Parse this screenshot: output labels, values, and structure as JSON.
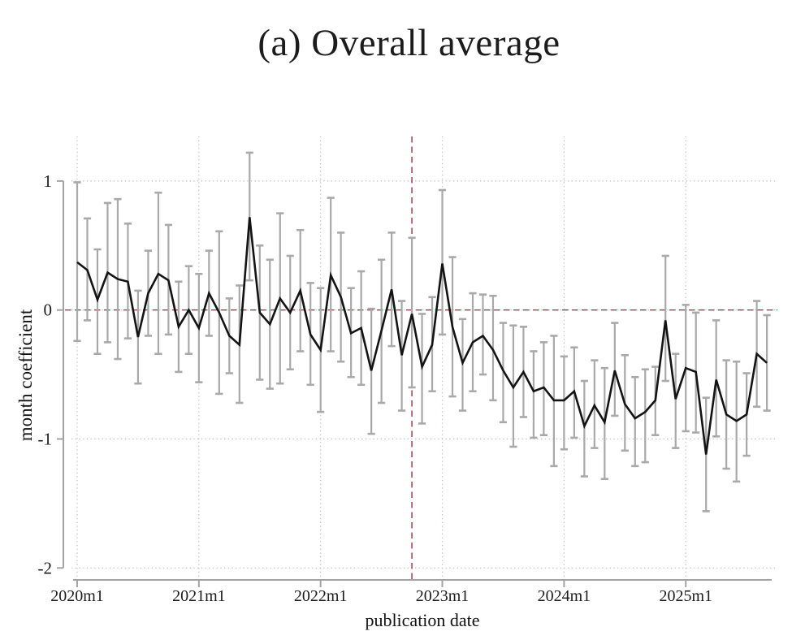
{
  "title": "(a) Overall average",
  "chart_data": {
    "type": "line",
    "title": "(a) Overall average",
    "xlabel": "publication date",
    "ylabel": "month coefficient",
    "x_tick_labels": [
      "2020m1",
      "2021m1",
      "2022m1",
      "2023m1",
      "2024m1",
      "2025m1"
    ],
    "y_ticks": [
      1,
      0,
      -1,
      -2
    ],
    "ylim": [
      -2.1,
      1.35
    ],
    "grid": "dotted",
    "legend": "none",
    "months": [
      "2020m1",
      "2020m2",
      "2020m3",
      "2020m4",
      "2020m5",
      "2020m6",
      "2020m7",
      "2020m8",
      "2020m9",
      "2020m10",
      "2020m11",
      "2020m12",
      "2021m1",
      "2021m2",
      "2021m3",
      "2021m4",
      "2021m5",
      "2021m6",
      "2021m7",
      "2021m8",
      "2021m9",
      "2021m10",
      "2021m11",
      "2021m12",
      "2022m1",
      "2022m2",
      "2022m3",
      "2022m4",
      "2022m5",
      "2022m6",
      "2022m7",
      "2022m8",
      "2022m9",
      "2022m10",
      "2022m11",
      "2022m12",
      "2023m1",
      "2023m2",
      "2023m3",
      "2023m4",
      "2023m5",
      "2023m6",
      "2023m7",
      "2023m8",
      "2023m9",
      "2023m10",
      "2023m11",
      "2023m12",
      "2024m1",
      "2024m2",
      "2024m3",
      "2024m4",
      "2024m5",
      "2024m6",
      "2024m7",
      "2024m8",
      "2024m9",
      "2024m10",
      "2024m11",
      "2024m12",
      "2025m1",
      "2025m2",
      "2025m3",
      "2025m4",
      "2025m5",
      "2025m6",
      "2025m7",
      "2025m8",
      "2025m9"
    ],
    "series": [
      {
        "name": "coefficient",
        "values": [
          0.37,
          0.31,
          0.08,
          0.29,
          0.24,
          0.22,
          -0.21,
          0.13,
          0.28,
          0.23,
          -0.13,
          0.0,
          -0.14,
          0.13,
          -0.02,
          -0.2,
          -0.27,
          0.72,
          -0.02,
          -0.11,
          0.09,
          -0.02,
          0.15,
          -0.19,
          -0.31,
          0.27,
          0.1,
          -0.18,
          -0.14,
          -0.47,
          -0.16,
          0.16,
          -0.35,
          -0.03,
          -0.44,
          -0.27,
          0.36,
          -0.13,
          -0.41,
          -0.25,
          -0.2,
          -0.31,
          -0.47,
          -0.6,
          -0.48,
          -0.63,
          -0.6,
          -0.7,
          -0.7,
          -0.63,
          -0.9,
          -0.74,
          -0.87,
          -0.47,
          -0.73,
          -0.84,
          -0.79,
          -0.7,
          -0.08,
          -0.69,
          -0.45,
          -0.48,
          -1.12,
          -0.54,
          -0.81,
          -0.86,
          -0.81,
          -0.34,
          -0.41
        ]
      },
      {
        "name": "ci_lower",
        "values": [
          -0.24,
          -0.08,
          -0.34,
          -0.25,
          -0.38,
          -0.22,
          -0.57,
          -0.2,
          -0.34,
          -0.19,
          -0.48,
          -0.34,
          -0.56,
          -0.2,
          -0.65,
          -0.49,
          -0.72,
          0.23,
          -0.54,
          -0.61,
          -0.57,
          -0.46,
          -0.32,
          -0.58,
          -0.79,
          -0.32,
          -0.4,
          -0.52,
          -0.58,
          -0.96,
          -0.72,
          -0.28,
          -0.78,
          -0.6,
          -0.88,
          -0.63,
          -0.19,
          -0.67,
          -0.78,
          -0.63,
          -0.5,
          -0.7,
          -0.87,
          -1.06,
          -0.83,
          -0.99,
          -0.97,
          -1.21,
          -1.08,
          -0.99,
          -1.29,
          -1.07,
          -1.31,
          -0.82,
          -1.09,
          -1.21,
          -1.18,
          -0.97,
          -0.55,
          -1.07,
          -0.94,
          -0.95,
          -1.56,
          -0.98,
          -1.23,
          -1.33,
          -1.13,
          -0.75,
          -0.78
        ]
      },
      {
        "name": "ci_upper",
        "values": [
          0.99,
          0.71,
          0.47,
          0.83,
          0.86,
          0.67,
          0.15,
          0.46,
          0.91,
          0.66,
          0.22,
          0.34,
          0.28,
          0.46,
          0.61,
          0.09,
          0.19,
          1.22,
          0.5,
          0.39,
          0.75,
          0.42,
          0.62,
          0.21,
          0.17,
          0.87,
          0.6,
          0.17,
          0.3,
          0.01,
          0.39,
          0.6,
          0.07,
          0.56,
          -0.03,
          0.1,
          0.93,
          0.41,
          -0.07,
          0.13,
          0.12,
          0.11,
          -0.1,
          -0.12,
          -0.13,
          -0.32,
          -0.25,
          -0.2,
          -0.36,
          -0.29,
          -0.55,
          -0.39,
          -0.45,
          -0.1,
          -0.35,
          -0.52,
          -0.46,
          -0.44,
          0.42,
          -0.34,
          0.04,
          -0.02,
          -0.68,
          -0.08,
          -0.39,
          -0.4,
          -0.49,
          0.07,
          -0.04
        ]
      }
    ],
    "reference_lines": [
      {
        "axis": "y",
        "value": 0,
        "style": "dashed",
        "color": "#9e4152"
      },
      {
        "axis": "x",
        "value": "2022m10",
        "style": "dashed",
        "color": "#9e4152"
      }
    ],
    "colors": {
      "line": "#141414",
      "ci": "#a9a9a9",
      "grid": "#bdbdbd",
      "axis": "#a3a3a3",
      "text": "#1c1c1c"
    }
  }
}
